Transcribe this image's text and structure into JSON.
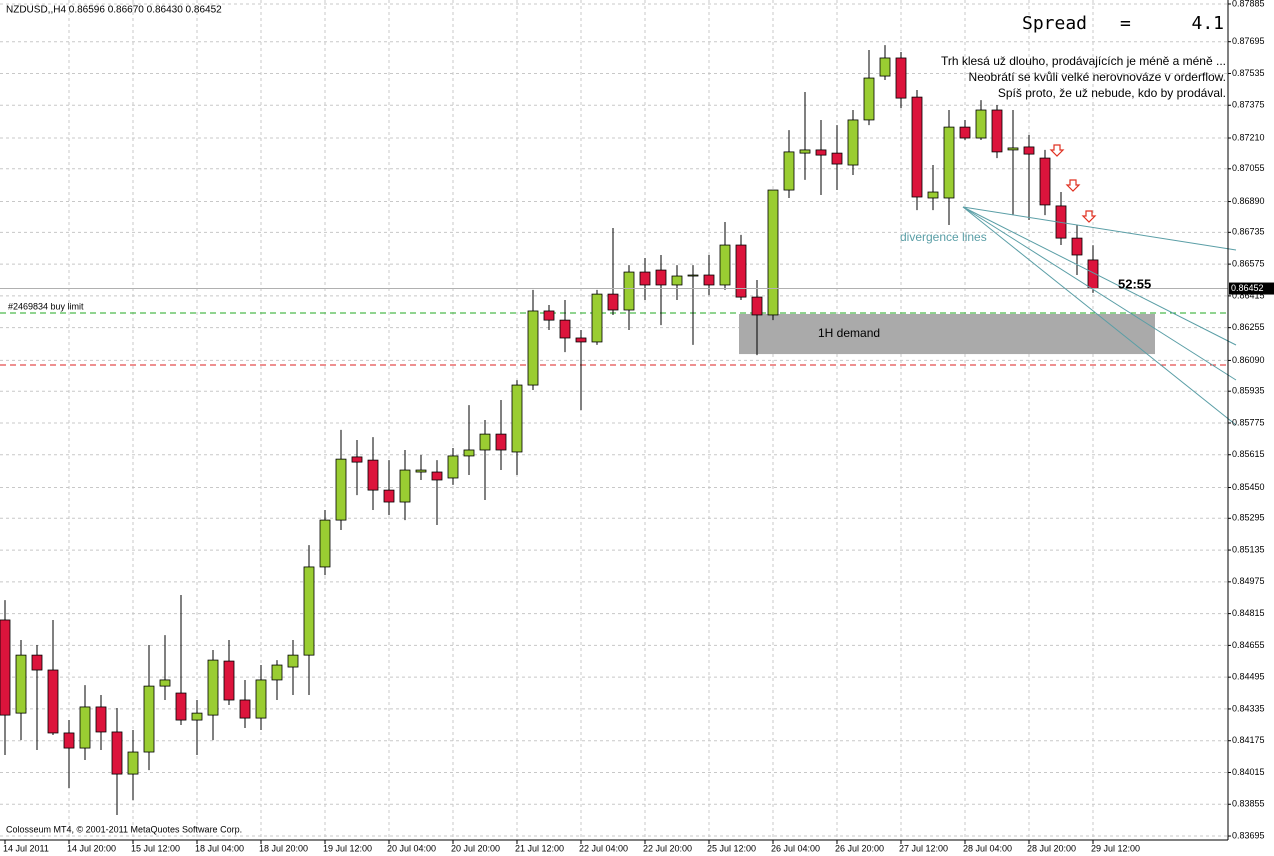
{
  "chart_data": {
    "type": "candlestick",
    "header": "NZDUSD,,H4  0.86596 0.86670 0.86430 0.86452",
    "spread_label": "Spread",
    "spread_eq": "=",
    "spread_value": "4.1",
    "comment": [
      "Trh klesá už dlouho, prodávajících je méně a méně ...",
      "Neobrátí se kvůli velké nerovnováze v orderflow.",
      "Spíš proto, že už nebude, kdo by prodával."
    ],
    "annotations": {
      "divergence": "divergence lines",
      "timer": "52:55"
    },
    "zone": {
      "label": "1H demand",
      "top": 0.86324,
      "bottom": 0.86122,
      "color": "#aaaaaa"
    },
    "levels": [
      {
        "label": "#2469834 buy limit",
        "value": 0.86329,
        "color": "#22aa22"
      },
      {
        "value": 0.86067,
        "color": "#dd2222"
      }
    ],
    "footer": "Colosseum MT4, © 2001-2011 MetaQuotes Software Corp.",
    "up_color": "#9acd32",
    "down_color": "#dc143c",
    "grid": true,
    "ylim": [
      0.83675,
      0.87905
    ],
    "yticks": [
      0.87885,
      0.87695,
      0.87535,
      0.87375,
      {
        "value": 0.8721,
        "label": "0.87210"
      },
      0.87055,
      {
        "value": 0.8689,
        "label": "0.86890"
      },
      0.86735,
      0.86575,
      0.86415,
      0.86255,
      {
        "value": 0.8609,
        "label": "0.86090"
      },
      0.85935,
      0.85775,
      0.85615,
      {
        "value": 0.8545,
        "label": "0.85450"
      },
      0.85295,
      0.85135,
      0.84975,
      0.84815,
      0.84655,
      0.84495,
      0.84335,
      0.84175,
      0.84015,
      0.83855,
      0.83695
    ],
    "categories": [
      "14 Jul 2011",
      null,
      null,
      null,
      "14 Jul 20:00",
      null,
      null,
      null,
      "15 Jul 12:00",
      null,
      null,
      null,
      "18 Jul 04:00",
      null,
      null,
      null,
      "18 Jul 20:00",
      null,
      null,
      null,
      "19 Jul 12:00",
      null,
      null,
      null,
      "20 Jul 04:00",
      null,
      null,
      null,
      "20 Jul 20:00",
      null,
      null,
      null,
      "21 Jul 12:00",
      null,
      null,
      null,
      "22 Jul 04:00",
      null,
      null,
      null,
      "22 Jul 20:00",
      null,
      null,
      null,
      "25 Jul 12:00",
      null,
      null,
      null,
      "26 Jul 04:00",
      null,
      null,
      null,
      "26 Jul 20:00",
      null,
      null,
      null,
      "27 Jul 12:00",
      null,
      null,
      null,
      "28 Jul 04:00",
      null,
      null,
      null,
      "28 Jul 20:00",
      null,
      null,
      null,
      "29 Jul 12:00"
    ],
    "open": [
      0.84783,
      0.84314,
      0.84606,
      0.84531,
      0.84214,
      0.84138,
      0.84345,
      0.84219,
      0.84007,
      0.84118,
      0.8445,
      0.84415,
      0.84279,
      0.84304,
      0.84576,
      0.8438,
      0.84289,
      0.84481,
      0.84546,
      0.84606,
      0.8505,
      0.85286,
      0.85604,
      0.85588,
      0.85437,
      0.85377,
      0.85528,
      0.85528,
      0.85498,
      0.85609,
      0.85639,
      0.85719,
      0.85629,
      0.85966,
      0.86339,
      0.86293,
      0.86203,
      0.86183,
      0.86424,
      0.86344,
      0.86535,
      0.86545,
      0.8647,
      0.86515,
      0.8652,
      0.8647,
      0.86671,
      0.86409,
      0.86319,
      0.86948,
      0.87134,
      0.8715,
      0.87134,
      0.87074,
      0.87301,
      0.87522,
      0.87613,
      0.87416,
      0.86908,
      0.86908,
      0.87265,
      0.8721,
      0.87351,
      0.8715,
      0.87165,
      0.87109,
      0.86868,
      0.86706,
      0.86596
    ],
    "high": [
      0.84883,
      0.84682,
      0.84657,
      0.84783,
      0.84279,
      0.84455,
      0.84405,
      0.8434,
      0.84229,
      0.84657,
      0.84707,
      0.84909,
      0.8438,
      0.84632,
      0.84682,
      0.84481,
      0.84556,
      0.84581,
      0.84682,
      0.8516,
      0.85337,
      0.8574,
      0.85689,
      0.85704,
      0.85588,
      0.85639,
      0.85614,
      0.85588,
      0.85649,
      0.85865,
      0.8579,
      0.85891,
      0.85991,
      0.86445,
      0.86369,
      0.86394,
      0.86243,
      0.86445,
      0.86757,
      0.8657,
      0.86606,
      0.86621,
      0.8657,
      0.8657,
      0.86621,
      0.86787,
      0.86722,
      0.86495,
      0.86948,
      0.8725,
      0.87442,
      0.87301,
      0.87275,
      0.87351,
      0.87653,
      0.87678,
      0.87643,
      0.87452,
      0.87074,
      0.87351,
      0.87301,
      0.87401,
      0.87376,
      0.87351,
      0.87225,
      0.8715,
      0.86938,
      0.86772,
      0.8667
    ],
    "low": [
      0.84103,
      0.84178,
      0.84128,
      0.84204,
      0.83937,
      0.84078,
      0.84128,
      0.83801,
      0.83876,
      0.84027,
      0.8438,
      0.84254,
      0.84103,
      0.84178,
      0.84355,
      0.84239,
      0.84229,
      0.8438,
      0.84405,
      0.84405,
      0.85009,
      0.85236,
      0.85412,
      0.85337,
      0.85311,
      0.85286,
      0.85488,
      0.85261,
      0.85463,
      0.85513,
      0.85387,
      0.85538,
      0.85513,
      0.85941,
      0.86243,
      0.86132,
      0.8584,
      0.86168,
      0.86319,
      0.86243,
      0.86394,
      0.86268,
      0.86394,
      0.86168,
      0.86419,
      0.86445,
      0.86394,
      0.86117,
      0.86293,
      0.86908,
      0.86999,
      0.86923,
      0.86948,
      0.87024,
      0.87275,
      0.87502,
      0.87361,
      0.86847,
      0.86847,
      0.86772,
      0.872,
      0.872,
      0.87109,
      0.86822,
      0.86797,
      0.86822,
      0.86671,
      0.8652,
      0.8643
    ],
    "close": [
      0.84304,
      0.84606,
      0.84531,
      0.84214,
      0.84138,
      0.84345,
      0.84219,
      0.84007,
      0.84118,
      0.8445,
      0.84481,
      0.84279,
      0.84314,
      0.84581,
      0.8438,
      0.84289,
      0.84481,
      0.84556,
      0.84606,
      0.8505,
      0.85286,
      0.85593,
      0.85578,
      0.85437,
      0.85377,
      0.85538,
      0.85538,
      0.85488,
      0.85609,
      0.85639,
      0.85719,
      0.85639,
      0.85966,
      0.86339,
      0.86293,
      0.86203,
      0.86183,
      0.86424,
      0.86344,
      0.86535,
      0.8647,
      0.8647,
      0.86515,
      0.8652,
      0.8647,
      0.86671,
      0.86409,
      0.86319,
      0.86948,
      0.8714,
      0.8715,
      0.87124,
      0.87079,
      0.87301,
      0.87512,
      0.87613,
      0.87411,
      0.86913,
      0.86938,
      0.87265,
      0.8721,
      0.87351,
      0.8714,
      0.8716,
      0.87129,
      0.86873,
      0.86706,
      0.86621,
      0.86452
    ]
  }
}
